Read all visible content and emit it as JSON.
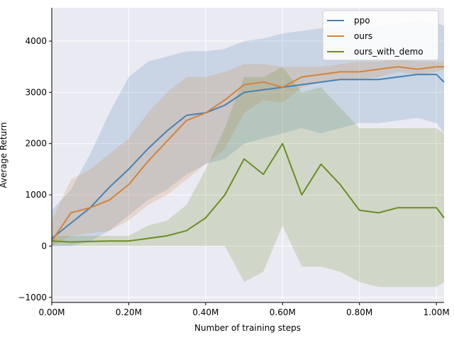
{
  "chart_data": {
    "type": "line",
    "title": "",
    "xlabel": "Number of training steps",
    "ylabel": "Average Return",
    "xlim": [
      0,
      1020000
    ],
    "ylim": [
      -1100,
      4650
    ],
    "grid": true,
    "legend_position": "top-right",
    "x_ticks": [
      {
        "value": 0,
        "label": "0.00M"
      },
      {
        "value": 200000,
        "label": "0.20M"
      },
      {
        "value": 400000,
        "label": "0.40M"
      },
      {
        "value": 600000,
        "label": "0.60M"
      },
      {
        "value": 800000,
        "label": "0.80M"
      },
      {
        "value": 1000000,
        "label": "1.00M"
      }
    ],
    "y_ticks": [
      {
        "value": -1000,
        "label": "−1000"
      },
      {
        "value": 0,
        "label": "0"
      },
      {
        "value": 1000,
        "label": "1000"
      },
      {
        "value": 2000,
        "label": "2000"
      },
      {
        "value": 3000,
        "label": "3000"
      },
      {
        "value": 4000,
        "label": "4000"
      }
    ],
    "x": [
      0,
      50000,
      100000,
      150000,
      200000,
      250000,
      300000,
      350000,
      400000,
      450000,
      500000,
      550000,
      600000,
      650000,
      700000,
      750000,
      800000,
      850000,
      900000,
      950000,
      1000000,
      1020000
    ],
    "series": [
      {
        "name": "ppo",
        "color": "#4682b4",
        "values": [
          150,
          450,
          750,
          1150,
          1500,
          1900,
          2250,
          2550,
          2600,
          2750,
          3000,
          3050,
          3100,
          3150,
          3200,
          3250,
          3250,
          3250,
          3300,
          3350,
          3350,
          3200
        ],
        "lower": [
          0,
          0,
          100,
          300,
          600,
          900,
          1100,
          1400,
          1600,
          1700,
          2000,
          2100,
          2200,
          2300,
          2200,
          2300,
          2400,
          2400,
          2450,
          2500,
          2400,
          2200
        ],
        "upper": [
          700,
          1100,
          1800,
          2600,
          3300,
          3600,
          3700,
          3800,
          3800,
          3850,
          4000,
          4050,
          4150,
          4200,
          4250,
          4300,
          4350,
          4300,
          4350,
          4400,
          4350,
          4300
        ]
      },
      {
        "name": "ours",
        "color": "#d2843a",
        "values": [
          100,
          650,
          750,
          900,
          1200,
          1650,
          2050,
          2450,
          2600,
          2850,
          3150,
          3200,
          3100,
          3300,
          3350,
          3400,
          3400,
          3450,
          3500,
          3450,
          3500,
          3500
        ],
        "lower": [
          0,
          200,
          250,
          300,
          500,
          800,
          1000,
          1300,
          1600,
          1900,
          2600,
          2850,
          2800,
          3100,
          3200,
          3250,
          3250,
          3300,
          3400,
          3350,
          3400,
          3450
        ],
        "upper": [
          500,
          1300,
          1500,
          1800,
          2100,
          2600,
          3000,
          3300,
          3300,
          3400,
          3550,
          3550,
          3500,
          3500,
          3500,
          3550,
          3600,
          3600,
          3650,
          3600,
          3600,
          3600
        ]
      },
      {
        "name": "ours_with_demo",
        "color": "#6b8e23",
        "values": [
          100,
          80,
          90,
          100,
          100,
          150,
          200,
          300,
          550,
          1000,
          1700,
          1400,
          2000,
          1000,
          1600,
          1200,
          700,
          650,
          750,
          750,
          750,
          550
        ],
        "lower": [
          0,
          0,
          0,
          0,
          0,
          0,
          0,
          0,
          0,
          0,
          -700,
          -500,
          400,
          -400,
          -400,
          -500,
          -700,
          -800,
          -800,
          -800,
          -800,
          -700
        ],
        "upper": [
          200,
          200,
          200,
          200,
          200,
          400,
          500,
          800,
          1500,
          2300,
          3300,
          3300,
          3500,
          3000,
          3100,
          2700,
          2300,
          2300,
          2300,
          2300,
          2300,
          2200
        ]
      }
    ]
  }
}
